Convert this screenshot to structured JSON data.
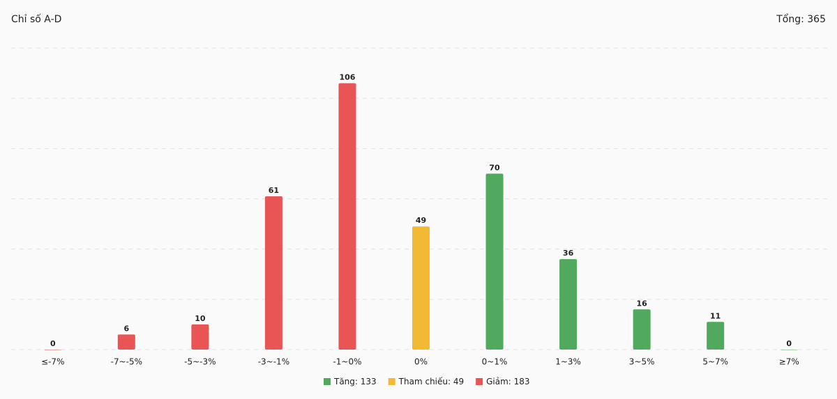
{
  "chart_data": {
    "type": "bar",
    "title": "Chỉ số A-D",
    "total_label": "Tổng: 365",
    "categories": [
      "≤-7%",
      "-7~-5%",
      "-5~-3%",
      "-3~-1%",
      "-1~0%",
      "0%",
      "0~1%",
      "1~3%",
      "3~5%",
      "5~7%",
      "≥7%"
    ],
    "values": [
      0,
      6,
      10,
      61,
      106,
      49,
      70,
      36,
      16,
      11,
      0
    ],
    "bar_colors": [
      "#e95455",
      "#e95455",
      "#e95455",
      "#e95455",
      "#e95455",
      "#f2b933",
      "#51a95e",
      "#51a95e",
      "#51a95e",
      "#51a95e",
      "#51a95e"
    ],
    "legend": [
      {
        "label": "Tăng: 133",
        "color": "#51a95e"
      },
      {
        "label": "Tham chiếu: 49",
        "color": "#f2b933"
      },
      {
        "label": "Giảm: 183",
        "color": "#e95455"
      }
    ],
    "ylim": [
      0,
      120
    ],
    "yticks": [
      0,
      20,
      40,
      60,
      80,
      100,
      120
    ],
    "grid": true
  }
}
